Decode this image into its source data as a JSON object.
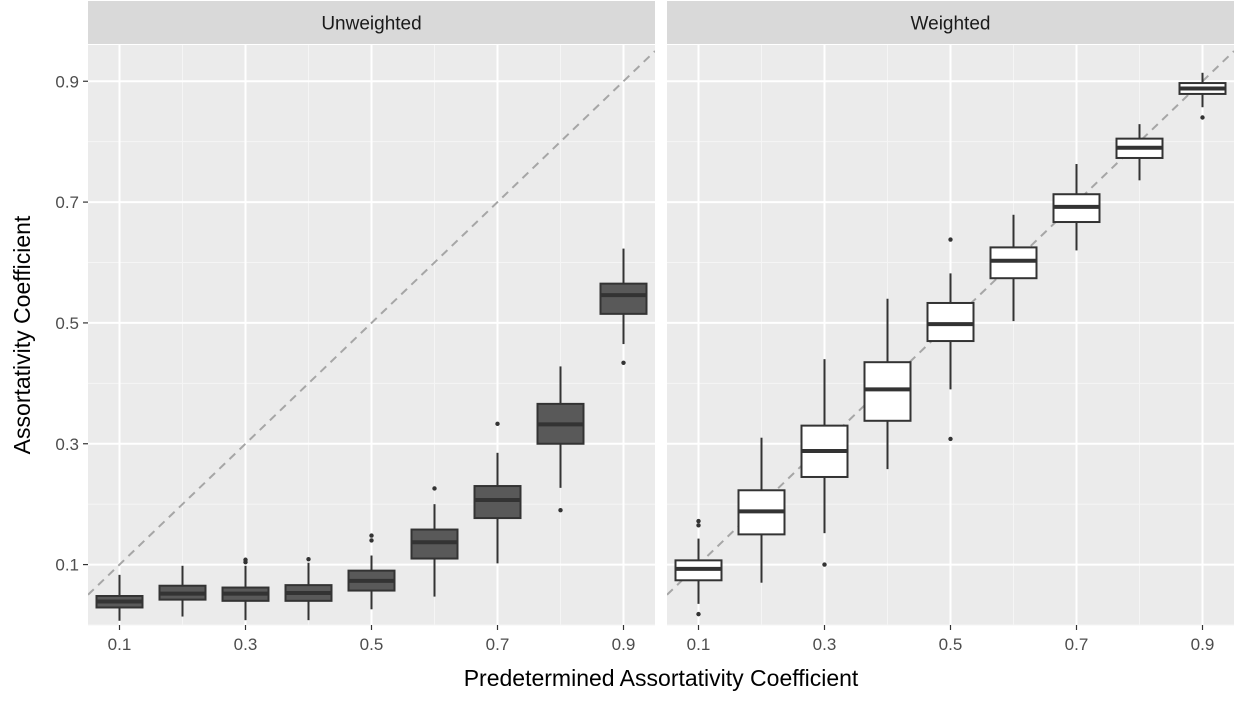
{
  "chart_data": {
    "type": "boxplot",
    "xlabel": "Predetermined Assortativity Coefficient",
    "ylabel": "Assortativity Coefficient",
    "xlim": [
      0.05,
      0.95
    ],
    "ylim": [
      0.0,
      0.96
    ],
    "x_ticks": [
      "0.1",
      "0.3",
      "0.5",
      "0.7",
      "0.9"
    ],
    "y_ticks": [
      "0.1",
      "0.3",
      "0.5",
      "0.7",
      "0.9"
    ],
    "grid": true,
    "reference_line": "y = x (dashed)",
    "panels": [
      {
        "title": "Unweighted",
        "box_fill": "#595959",
        "boxes": [
          {
            "x": 0.1,
            "min": 0.007,
            "q1": 0.029,
            "median": 0.039,
            "q3": 0.048,
            "max": 0.083,
            "outliers": []
          },
          {
            "x": 0.2,
            "min": 0.014,
            "q1": 0.042,
            "median": 0.052,
            "q3": 0.065,
            "max": 0.098,
            "outliers": []
          },
          {
            "x": 0.3,
            "min": 0.008,
            "q1": 0.04,
            "median": 0.052,
            "q3": 0.062,
            "max": 0.098,
            "outliers": [
              0.104,
              0.108
            ]
          },
          {
            "x": 0.4,
            "min": 0.008,
            "q1": 0.04,
            "median": 0.053,
            "q3": 0.066,
            "max": 0.103,
            "outliers": [
              0.109
            ]
          },
          {
            "x": 0.5,
            "min": 0.026,
            "q1": 0.057,
            "median": 0.073,
            "q3": 0.09,
            "max": 0.115,
            "outliers": [
              0.14,
              0.148
            ]
          },
          {
            "x": 0.6,
            "min": 0.047,
            "q1": 0.11,
            "median": 0.137,
            "q3": 0.158,
            "max": 0.2,
            "outliers": [
              0.226
            ]
          },
          {
            "x": 0.7,
            "min": 0.102,
            "q1": 0.177,
            "median": 0.207,
            "q3": 0.23,
            "max": 0.285,
            "outliers": [
              0.333
            ]
          },
          {
            "x": 0.8,
            "min": 0.227,
            "q1": 0.3,
            "median": 0.332,
            "q3": 0.366,
            "max": 0.428,
            "outliers": [
              0.19
            ]
          },
          {
            "x": 0.9,
            "min": 0.465,
            "q1": 0.515,
            "median": 0.546,
            "q3": 0.565,
            "max": 0.623,
            "outliers": [
              0.434
            ]
          }
        ]
      },
      {
        "title": "Weighted",
        "box_fill": "#ffffff",
        "boxes": [
          {
            "x": 0.1,
            "min": 0.035,
            "q1": 0.074,
            "median": 0.093,
            "q3": 0.107,
            "max": 0.143,
            "outliers": [
              0.165,
              0.172,
              0.018
            ]
          },
          {
            "x": 0.2,
            "min": 0.07,
            "q1": 0.15,
            "median": 0.188,
            "q3": 0.223,
            "max": 0.31,
            "outliers": []
          },
          {
            "x": 0.3,
            "min": 0.152,
            "q1": 0.245,
            "median": 0.288,
            "q3": 0.33,
            "max": 0.44,
            "outliers": [
              0.1
            ]
          },
          {
            "x": 0.4,
            "min": 0.258,
            "q1": 0.338,
            "median": 0.39,
            "q3": 0.435,
            "max": 0.54,
            "outliers": []
          },
          {
            "x": 0.5,
            "min": 0.39,
            "q1": 0.47,
            "median": 0.498,
            "q3": 0.533,
            "max": 0.582,
            "outliers": [
              0.638,
              0.308
            ]
          },
          {
            "x": 0.6,
            "min": 0.503,
            "q1": 0.574,
            "median": 0.603,
            "q3": 0.625,
            "max": 0.679,
            "outliers": []
          },
          {
            "x": 0.7,
            "min": 0.62,
            "q1": 0.667,
            "median": 0.692,
            "q3": 0.713,
            "max": 0.763,
            "outliers": []
          },
          {
            "x": 0.8,
            "min": 0.736,
            "q1": 0.773,
            "median": 0.79,
            "q3": 0.805,
            "max": 0.829,
            "outliers": []
          },
          {
            "x": 0.9,
            "min": 0.857,
            "q1": 0.879,
            "median": 0.888,
            "q3": 0.897,
            "max": 0.914,
            "outliers": [
              0.84
            ]
          }
        ]
      }
    ]
  }
}
